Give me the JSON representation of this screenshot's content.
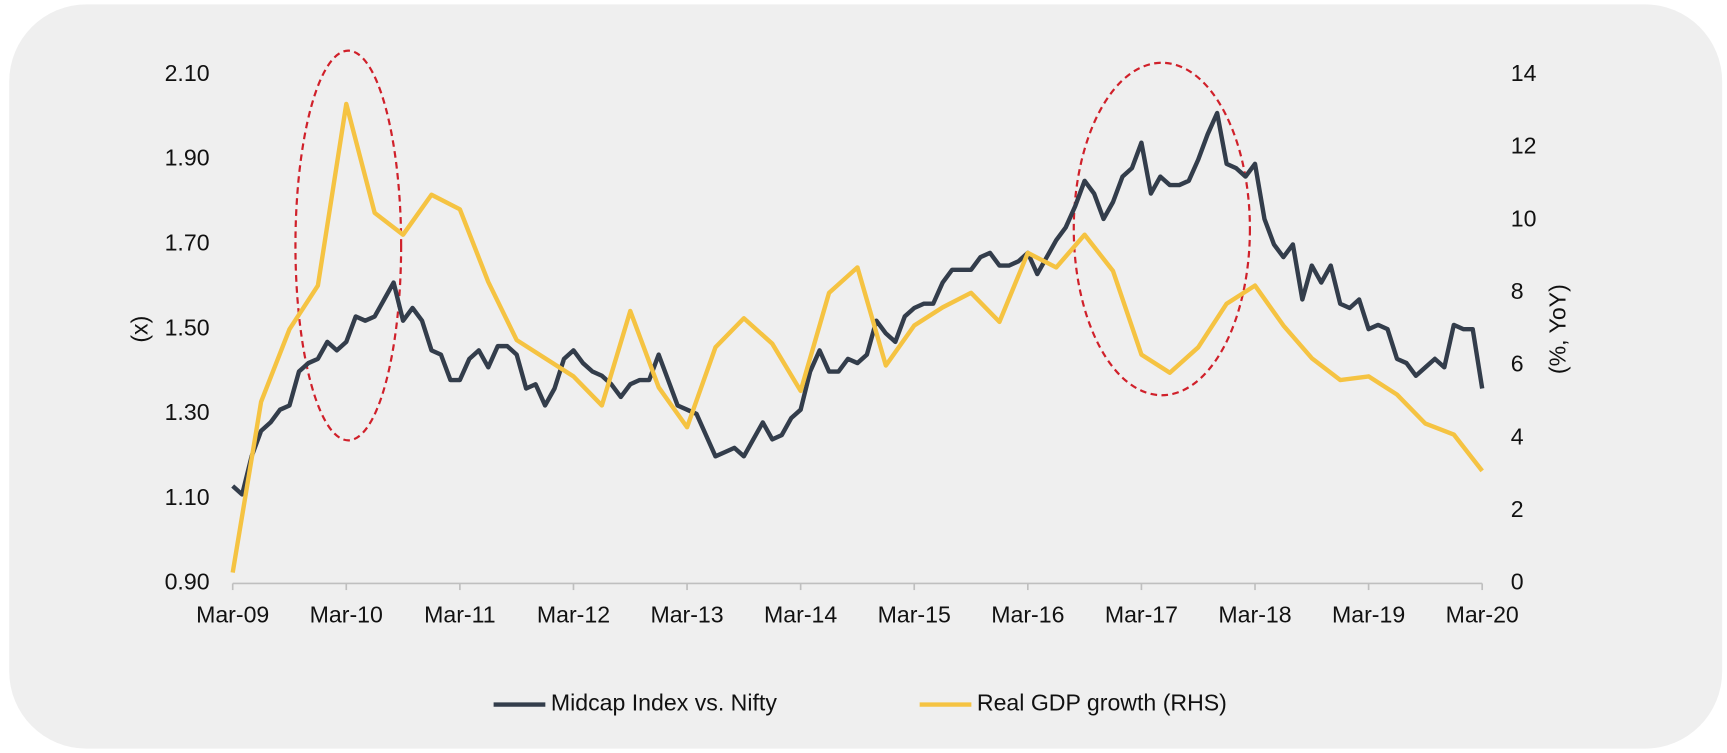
{
  "chart_data": {
    "type": "line",
    "xlim": [
      "2009-03",
      "2020-03"
    ],
    "xticks": [
      {
        "value": "2009-03",
        "label": "Mar-09"
      },
      {
        "value": "2010-03",
        "label": "Mar-10"
      },
      {
        "value": "2011-03",
        "label": "Mar-11"
      },
      {
        "value": "2012-03",
        "label": "Mar-12"
      },
      {
        "value": "2013-03",
        "label": "Mar-13"
      },
      {
        "value": "2014-03",
        "label": "Mar-14"
      },
      {
        "value": "2015-03",
        "label": "Mar-15"
      },
      {
        "value": "2016-03",
        "label": "Mar-16"
      },
      {
        "value": "2017-03",
        "label": "Mar-17"
      },
      {
        "value": "2018-03",
        "label": "Mar-18"
      },
      {
        "value": "2019-03",
        "label": "Mar-19"
      },
      {
        "value": "2020-03",
        "label": "Mar-20"
      }
    ],
    "ylabel": "(x)",
    "ylim": [
      0.9,
      2.1
    ],
    "yticks": [
      {
        "value": 0.9,
        "label": "0.90"
      },
      {
        "value": 1.1,
        "label": "1.10"
      },
      {
        "value": 1.3,
        "label": "1.30"
      },
      {
        "value": 1.5,
        "label": "1.50"
      },
      {
        "value": 1.7,
        "label": "1.70"
      },
      {
        "value": 1.9,
        "label": "1.90"
      },
      {
        "value": 2.1,
        "label": "2.10"
      }
    ],
    "y2label": "(%, YoY)",
    "y2lim": [
      0,
      14
    ],
    "y2ticks": [
      0,
      2,
      4,
      6,
      8,
      10,
      12,
      14
    ],
    "legend": "bottom",
    "series": [
      {
        "name": "Midcap Index vs. Nifty",
        "color": "#333d4b",
        "x": [
          "2009-03",
          "2009-04",
          "2009-05",
          "2009-06",
          "2009-07",
          "2009-08",
          "2009-09",
          "2009-10",
          "2009-11",
          "2009-12",
          "2010-01",
          "2010-02",
          "2010-03",
          "2010-04",
          "2010-05",
          "2010-06",
          "2010-07",
          "2010-08",
          "2010-09",
          "2010-10",
          "2010-11",
          "2010-12",
          "2011-01",
          "2011-02",
          "2011-03",
          "2011-04",
          "2011-05",
          "2011-06",
          "2011-07",
          "2011-08",
          "2011-09",
          "2011-10",
          "2011-11",
          "2011-12",
          "2012-01",
          "2012-02",
          "2012-03",
          "2012-04",
          "2012-05",
          "2012-06",
          "2012-07",
          "2012-08",
          "2012-09",
          "2012-10",
          "2012-11",
          "2012-12",
          "2013-01",
          "2013-02",
          "2013-03",
          "2013-04",
          "2013-05",
          "2013-06",
          "2013-07",
          "2013-08",
          "2013-09",
          "2013-10",
          "2013-11",
          "2013-12",
          "2014-01",
          "2014-02",
          "2014-03",
          "2014-04",
          "2014-05",
          "2014-06",
          "2014-07",
          "2014-08",
          "2014-09",
          "2014-10",
          "2014-11",
          "2014-12",
          "2015-01",
          "2015-02",
          "2015-03",
          "2015-04",
          "2015-05",
          "2015-06",
          "2015-07",
          "2015-08",
          "2015-09",
          "2015-10",
          "2015-11",
          "2015-12",
          "2016-01",
          "2016-02",
          "2016-03",
          "2016-04",
          "2016-05",
          "2016-06",
          "2016-07",
          "2016-08",
          "2016-09",
          "2016-10",
          "2016-11",
          "2016-12",
          "2017-01",
          "2017-02",
          "2017-03",
          "2017-04",
          "2017-05",
          "2017-06",
          "2017-07",
          "2017-08",
          "2017-09",
          "2017-10",
          "2017-11",
          "2017-12",
          "2018-01",
          "2018-02",
          "2018-03",
          "2018-04",
          "2018-05",
          "2018-06",
          "2018-07",
          "2018-08",
          "2018-09",
          "2018-10",
          "2018-11",
          "2018-12",
          "2019-01",
          "2019-02",
          "2019-03",
          "2019-04",
          "2019-05",
          "2019-06",
          "2019-07",
          "2019-08",
          "2019-09",
          "2019-10",
          "2019-11",
          "2019-12",
          "2020-01",
          "2020-02",
          "2020-03"
        ],
        "values": [
          1.13,
          1.11,
          1.2,
          1.26,
          1.28,
          1.31,
          1.32,
          1.4,
          1.42,
          1.43,
          1.47,
          1.45,
          1.47,
          1.53,
          1.52,
          1.53,
          1.57,
          1.61,
          1.52,
          1.55,
          1.52,
          1.45,
          1.44,
          1.38,
          1.38,
          1.43,
          1.45,
          1.41,
          1.46,
          1.46,
          1.44,
          1.36,
          1.37,
          1.32,
          1.36,
          1.43,
          1.45,
          1.42,
          1.4,
          1.39,
          1.37,
          1.34,
          1.37,
          1.38,
          1.38,
          1.44,
          1.38,
          1.32,
          1.31,
          1.3,
          1.25,
          1.2,
          1.21,
          1.22,
          1.2,
          1.24,
          1.28,
          1.24,
          1.25,
          1.29,
          1.31,
          1.4,
          1.45,
          1.4,
          1.4,
          1.43,
          1.42,
          1.44,
          1.52,
          1.49,
          1.47,
          1.53,
          1.55,
          1.56,
          1.56,
          1.61,
          1.64,
          1.64,
          1.64,
          1.67,
          1.68,
          1.65,
          1.65,
          1.66,
          1.68,
          1.63,
          1.67,
          1.71,
          1.74,
          1.79,
          1.85,
          1.82,
          1.76,
          1.8,
          1.86,
          1.88,
          1.94,
          1.82,
          1.86,
          1.84,
          1.84,
          1.85,
          1.9,
          1.96,
          2.01,
          1.89,
          1.88,
          1.86,
          1.89,
          1.76,
          1.7,
          1.67,
          1.7,
          1.57,
          1.65,
          1.61,
          1.65,
          1.56,
          1.55,
          1.57,
          1.5,
          1.51,
          1.5,
          1.43,
          1.42,
          1.39,
          1.41,
          1.43,
          1.41,
          1.51,
          1.5,
          1.5,
          1.36
        ]
      },
      {
        "name": "Real GDP growth (RHS)",
        "color": "#f5c342",
        "axis": "y2",
        "x": [
          "2009-03",
          "2009-06",
          "2009-09",
          "2009-12",
          "2010-03",
          "2010-06",
          "2010-09",
          "2010-12",
          "2011-03",
          "2011-06",
          "2011-09",
          "2011-12",
          "2012-03",
          "2012-06",
          "2012-09",
          "2012-12",
          "2013-03",
          "2013-06",
          "2013-09",
          "2013-12",
          "2014-03",
          "2014-06",
          "2014-09",
          "2014-12",
          "2015-03",
          "2015-06",
          "2015-09",
          "2015-12",
          "2016-03",
          "2016-06",
          "2016-09",
          "2016-12",
          "2017-03",
          "2017-06",
          "2017-09",
          "2017-12",
          "2018-03",
          "2018-06",
          "2018-09",
          "2018-12",
          "2019-03",
          "2019-06",
          "2019-09",
          "2019-12",
          "2020-03"
        ],
        "values": [
          0.3,
          5.0,
          7.0,
          8.2,
          13.2,
          10.2,
          9.6,
          10.7,
          10.3,
          8.3,
          6.7,
          6.2,
          5.7,
          4.9,
          7.5,
          5.4,
          4.3,
          6.5,
          7.3,
          6.6,
          5.3,
          8.0,
          8.7,
          6.0,
          7.1,
          7.6,
          8.0,
          7.2,
          9.1,
          8.7,
          9.6,
          8.6,
          6.3,
          5.8,
          6.5,
          7.7,
          8.2,
          7.1,
          6.2,
          5.6,
          5.7,
          5.2,
          4.4,
          4.1,
          3.1
        ]
      }
    ]
  }
}
